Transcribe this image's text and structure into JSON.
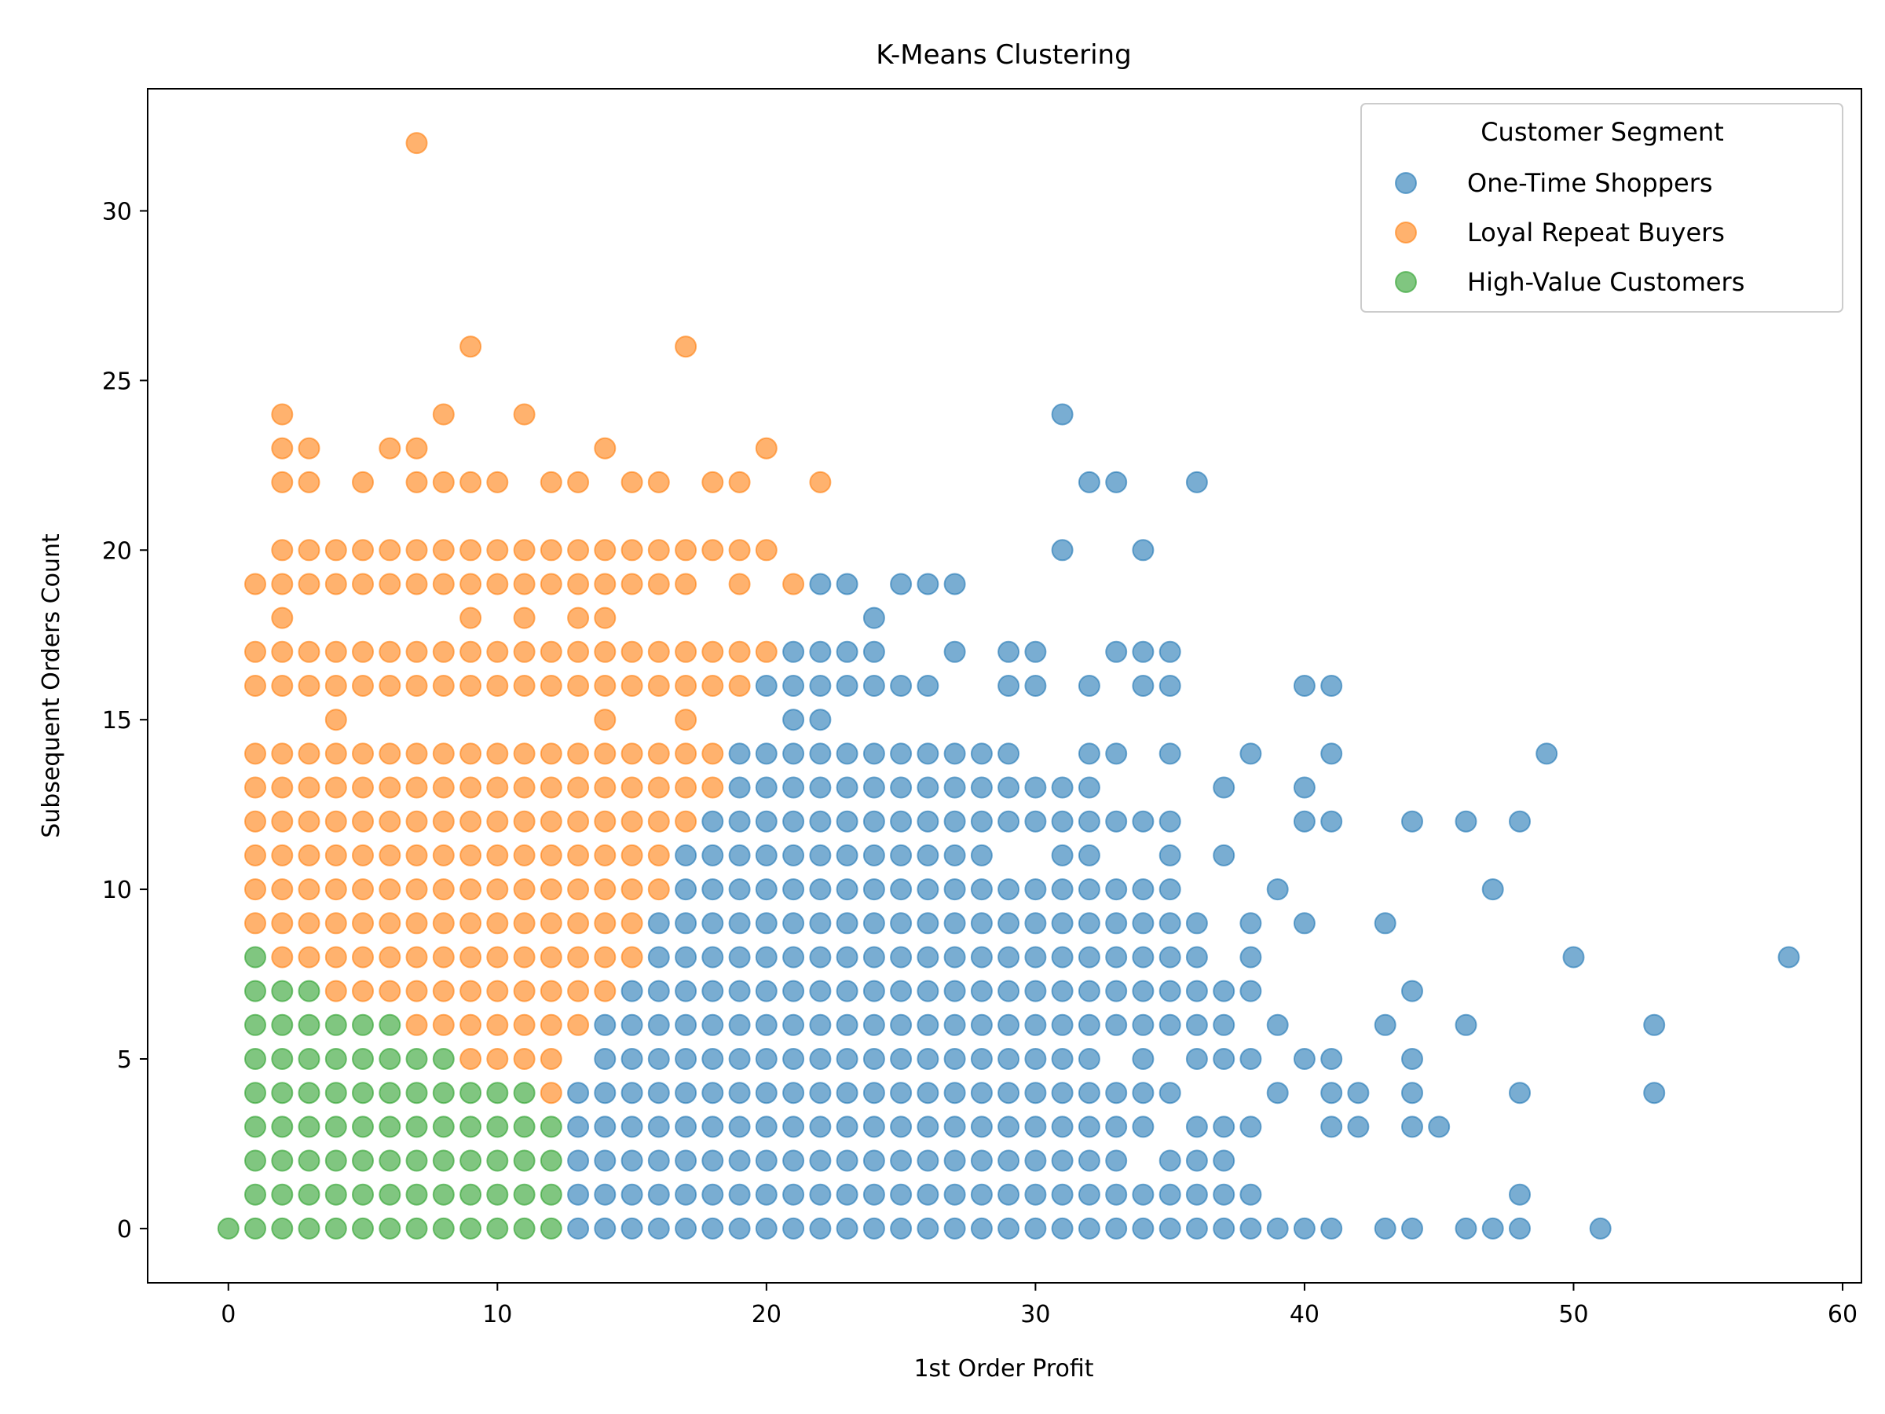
{
  "chart_data": {
    "type": "scatter",
    "title": "K-Means Clustering",
    "xlabel": "1st Order Profit",
    "ylabel": "Subsequent Orders Count",
    "xlim": [
      -3,
      60.7
    ],
    "ylim": [
      -1.6,
      33.6
    ],
    "xticks": [
      0,
      10,
      20,
      30,
      40,
      50,
      60
    ],
    "yticks": [
      0,
      5,
      10,
      15,
      20,
      25,
      30
    ],
    "grid": false,
    "legend": {
      "title": "Customer Segment",
      "placement": "top-right"
    },
    "series": [
      {
        "name": "One-Time Shoppers",
        "color": "#1f77b4",
        "rows": [
          {
            "y": 0,
            "x": [
              13,
              14,
              15,
              16,
              17,
              18,
              19,
              20,
              21,
              22,
              23,
              24,
              25,
              26,
              27,
              28,
              29,
              30,
              31,
              32,
              33,
              34,
              35,
              36,
              37,
              38,
              39,
              40,
              41,
              43,
              44,
              46,
              47,
              48,
              51
            ]
          },
          {
            "y": 1,
            "x": [
              13,
              14,
              15,
              16,
              17,
              18,
              19,
              20,
              21,
              22,
              23,
              24,
              25,
              26,
              27,
              28,
              29,
              30,
              31,
              32,
              33,
              34,
              35,
              36,
              37,
              38,
              48
            ]
          },
          {
            "y": 2,
            "x": [
              13,
              14,
              15,
              16,
              17,
              18,
              19,
              20,
              21,
              22,
              23,
              24,
              25,
              26,
              27,
              28,
              29,
              30,
              31,
              32,
              33,
              35,
              36,
              37
            ]
          },
          {
            "y": 3,
            "x": [
              13,
              14,
              15,
              16,
              17,
              18,
              19,
              20,
              21,
              22,
              23,
              24,
              25,
              26,
              27,
              28,
              29,
              30,
              31,
              32,
              33,
              34,
              36,
              37,
              38,
              41,
              42,
              44,
              45
            ]
          },
          {
            "y": 4,
            "x": [
              13,
              14,
              15,
              16,
              17,
              18,
              19,
              20,
              21,
              22,
              23,
              24,
              25,
              26,
              27,
              28,
              29,
              30,
              31,
              32,
              33,
              34,
              35,
              39,
              41,
              42,
              44,
              48,
              53
            ]
          },
          {
            "y": 5,
            "x": [
              14,
              15,
              16,
              17,
              18,
              19,
              20,
              21,
              22,
              23,
              24,
              25,
              26,
              27,
              28,
              29,
              30,
              31,
              32,
              34,
              36,
              37,
              38,
              40,
              41,
              44
            ]
          },
          {
            "y": 6,
            "x": [
              14,
              15,
              16,
              17,
              18,
              19,
              20,
              21,
              22,
              23,
              24,
              25,
              26,
              27,
              28,
              29,
              30,
              31,
              32,
              33,
              34,
              35,
              36,
              37,
              39,
              43,
              46,
              53
            ]
          },
          {
            "y": 7,
            "x": [
              15,
              16,
              17,
              18,
              19,
              20,
              21,
              22,
              23,
              24,
              25,
              26,
              27,
              28,
              29,
              30,
              31,
              32,
              33,
              34,
              35,
              36,
              37,
              38,
              44
            ]
          },
          {
            "y": 8,
            "x": [
              16,
              17,
              18,
              19,
              20,
              21,
              22,
              23,
              24,
              25,
              26,
              27,
              28,
              29,
              30,
              31,
              32,
              33,
              34,
              35,
              36,
              38,
              50,
              58
            ]
          },
          {
            "y": 9,
            "x": [
              16,
              17,
              18,
              19,
              20,
              21,
              22,
              23,
              24,
              25,
              26,
              27,
              28,
              29,
              30,
              31,
              32,
              33,
              34,
              35,
              36,
              38,
              40,
              43
            ]
          },
          {
            "y": 10,
            "x": [
              17,
              18,
              19,
              20,
              21,
              22,
              23,
              24,
              25,
              26,
              27,
              28,
              29,
              30,
              31,
              32,
              33,
              34,
              35,
              39,
              47
            ]
          },
          {
            "y": 11,
            "x": [
              17,
              18,
              19,
              20,
              21,
              22,
              23,
              24,
              25,
              26,
              27,
              28,
              31,
              32,
              35,
              37
            ]
          },
          {
            "y": 12,
            "x": [
              18,
              19,
              20,
              21,
              22,
              23,
              24,
              25,
              26,
              27,
              28,
              29,
              30,
              31,
              32,
              33,
              34,
              35,
              40,
              41,
              44,
              46,
              48
            ]
          },
          {
            "y": 13,
            "x": [
              19,
              20,
              21,
              22,
              23,
              24,
              25,
              26,
              27,
              28,
              29,
              30,
              31,
              32,
              37,
              40
            ]
          },
          {
            "y": 14,
            "x": [
              19,
              20,
              21,
              22,
              23,
              24,
              25,
              26,
              27,
              28,
              29,
              32,
              33,
              35,
              38,
              41,
              49
            ]
          },
          {
            "y": 15,
            "x": [
              21,
              22
            ]
          },
          {
            "y": 16,
            "x": [
              20,
              21,
              22,
              23,
              24,
              25,
              26,
              29,
              30,
              32,
              34,
              35,
              40,
              41
            ]
          },
          {
            "y": 17,
            "x": [
              21,
              22,
              23,
              24,
              27,
              29,
              30,
              33,
              34,
              35
            ]
          },
          {
            "y": 18,
            "x": [
              24
            ]
          },
          {
            "y": 19,
            "x": [
              22,
              23,
              25,
              26,
              27
            ]
          },
          {
            "y": 20,
            "x": [
              31,
              34
            ]
          },
          {
            "y": 22,
            "x": [
              32,
              33,
              36
            ]
          },
          {
            "y": 24,
            "x": [
              31
            ]
          }
        ]
      },
      {
        "name": "Loyal Repeat Buyers",
        "color": "#ff7f0e",
        "rows": [
          {
            "y": 4,
            "x": [
              12
            ]
          },
          {
            "y": 5,
            "x": [
              9,
              10,
              11,
              12
            ]
          },
          {
            "y": 6,
            "x": [
              7,
              8,
              9,
              10,
              11,
              12,
              13
            ]
          },
          {
            "y": 7,
            "x": [
              4,
              5,
              6,
              7,
              8,
              9,
              10,
              11,
              12,
              13,
              14
            ]
          },
          {
            "y": 8,
            "x": [
              2,
              3,
              4,
              5,
              6,
              7,
              8,
              9,
              10,
              11,
              12,
              13,
              14,
              15
            ]
          },
          {
            "y": 9,
            "x": [
              1,
              2,
              3,
              4,
              5,
              6,
              7,
              8,
              9,
              10,
              11,
              12,
              13,
              14,
              15
            ]
          },
          {
            "y": 10,
            "x": [
              1,
              2,
              3,
              4,
              5,
              6,
              7,
              8,
              9,
              10,
              11,
              12,
              13,
              14,
              15,
              16
            ]
          },
          {
            "y": 11,
            "x": [
              1,
              2,
              3,
              4,
              5,
              6,
              7,
              8,
              9,
              10,
              11,
              12,
              13,
              14,
              15,
              16
            ]
          },
          {
            "y": 12,
            "x": [
              1,
              2,
              3,
              4,
              5,
              6,
              7,
              8,
              9,
              10,
              11,
              12,
              13,
              14,
              15,
              16,
              17
            ]
          },
          {
            "y": 13,
            "x": [
              1,
              2,
              3,
              4,
              5,
              6,
              7,
              8,
              9,
              10,
              11,
              12,
              13,
              14,
              15,
              16,
              17,
              18
            ]
          },
          {
            "y": 14,
            "x": [
              1,
              2,
              3,
              4,
              5,
              6,
              7,
              8,
              9,
              10,
              11,
              12,
              13,
              14,
              15,
              16,
              17,
              18
            ]
          },
          {
            "y": 15,
            "x": [
              4,
              14,
              17
            ]
          },
          {
            "y": 16,
            "x": [
              1,
              2,
              3,
              4,
              5,
              6,
              7,
              8,
              9,
              10,
              11,
              12,
              13,
              14,
              15,
              16,
              17,
              18,
              19
            ]
          },
          {
            "y": 17,
            "x": [
              1,
              2,
              3,
              4,
              5,
              6,
              7,
              8,
              9,
              10,
              11,
              12,
              13,
              14,
              15,
              16,
              17,
              18,
              19,
              20
            ]
          },
          {
            "y": 18,
            "x": [
              2,
              9,
              11,
              13,
              14
            ]
          },
          {
            "y": 19,
            "x": [
              1,
              2,
              3,
              4,
              5,
              6,
              7,
              8,
              9,
              10,
              11,
              12,
              13,
              14,
              15,
              16,
              17,
              19,
              21
            ]
          },
          {
            "y": 20,
            "x": [
              2,
              3,
              4,
              5,
              6,
              7,
              8,
              9,
              10,
              11,
              12,
              13,
              14,
              15,
              16,
              17,
              18,
              19,
              20
            ]
          },
          {
            "y": 22,
            "x": [
              2,
              3,
              5,
              7,
              8,
              9,
              10,
              12,
              13,
              15,
              16,
              18,
              19,
              22
            ]
          },
          {
            "y": 23,
            "x": [
              2,
              3,
              6,
              7,
              14,
              20
            ]
          },
          {
            "y": 24,
            "x": [
              2,
              8,
              11
            ]
          },
          {
            "y": 26,
            "x": [
              9,
              17
            ]
          },
          {
            "y": 32,
            "x": [
              7
            ]
          }
        ]
      },
      {
        "name": "High-Value Customers",
        "color": "#2ca02c",
        "rows": [
          {
            "y": 0,
            "x": [
              0,
              1,
              2,
              3,
              4,
              5,
              6,
              7,
              8,
              9,
              10,
              11,
              12
            ]
          },
          {
            "y": 1,
            "x": [
              1,
              2,
              3,
              4,
              5,
              6,
              7,
              8,
              9,
              10,
              11,
              12
            ]
          },
          {
            "y": 2,
            "x": [
              1,
              2,
              3,
              4,
              5,
              6,
              7,
              8,
              9,
              10,
              11,
              12
            ]
          },
          {
            "y": 3,
            "x": [
              1,
              2,
              3,
              4,
              5,
              6,
              7,
              8,
              9,
              10,
              11,
              12
            ]
          },
          {
            "y": 4,
            "x": [
              1,
              2,
              3,
              4,
              5,
              6,
              7,
              8,
              9,
              10,
              11
            ]
          },
          {
            "y": 5,
            "x": [
              1,
              2,
              3,
              4,
              5,
              6,
              7,
              8
            ]
          },
          {
            "y": 6,
            "x": [
              1,
              2,
              3,
              4,
              5,
              6
            ]
          },
          {
            "y": 7,
            "x": [
              1,
              2,
              3
            ]
          },
          {
            "y": 8,
            "x": [
              1
            ]
          }
        ]
      }
    ]
  }
}
